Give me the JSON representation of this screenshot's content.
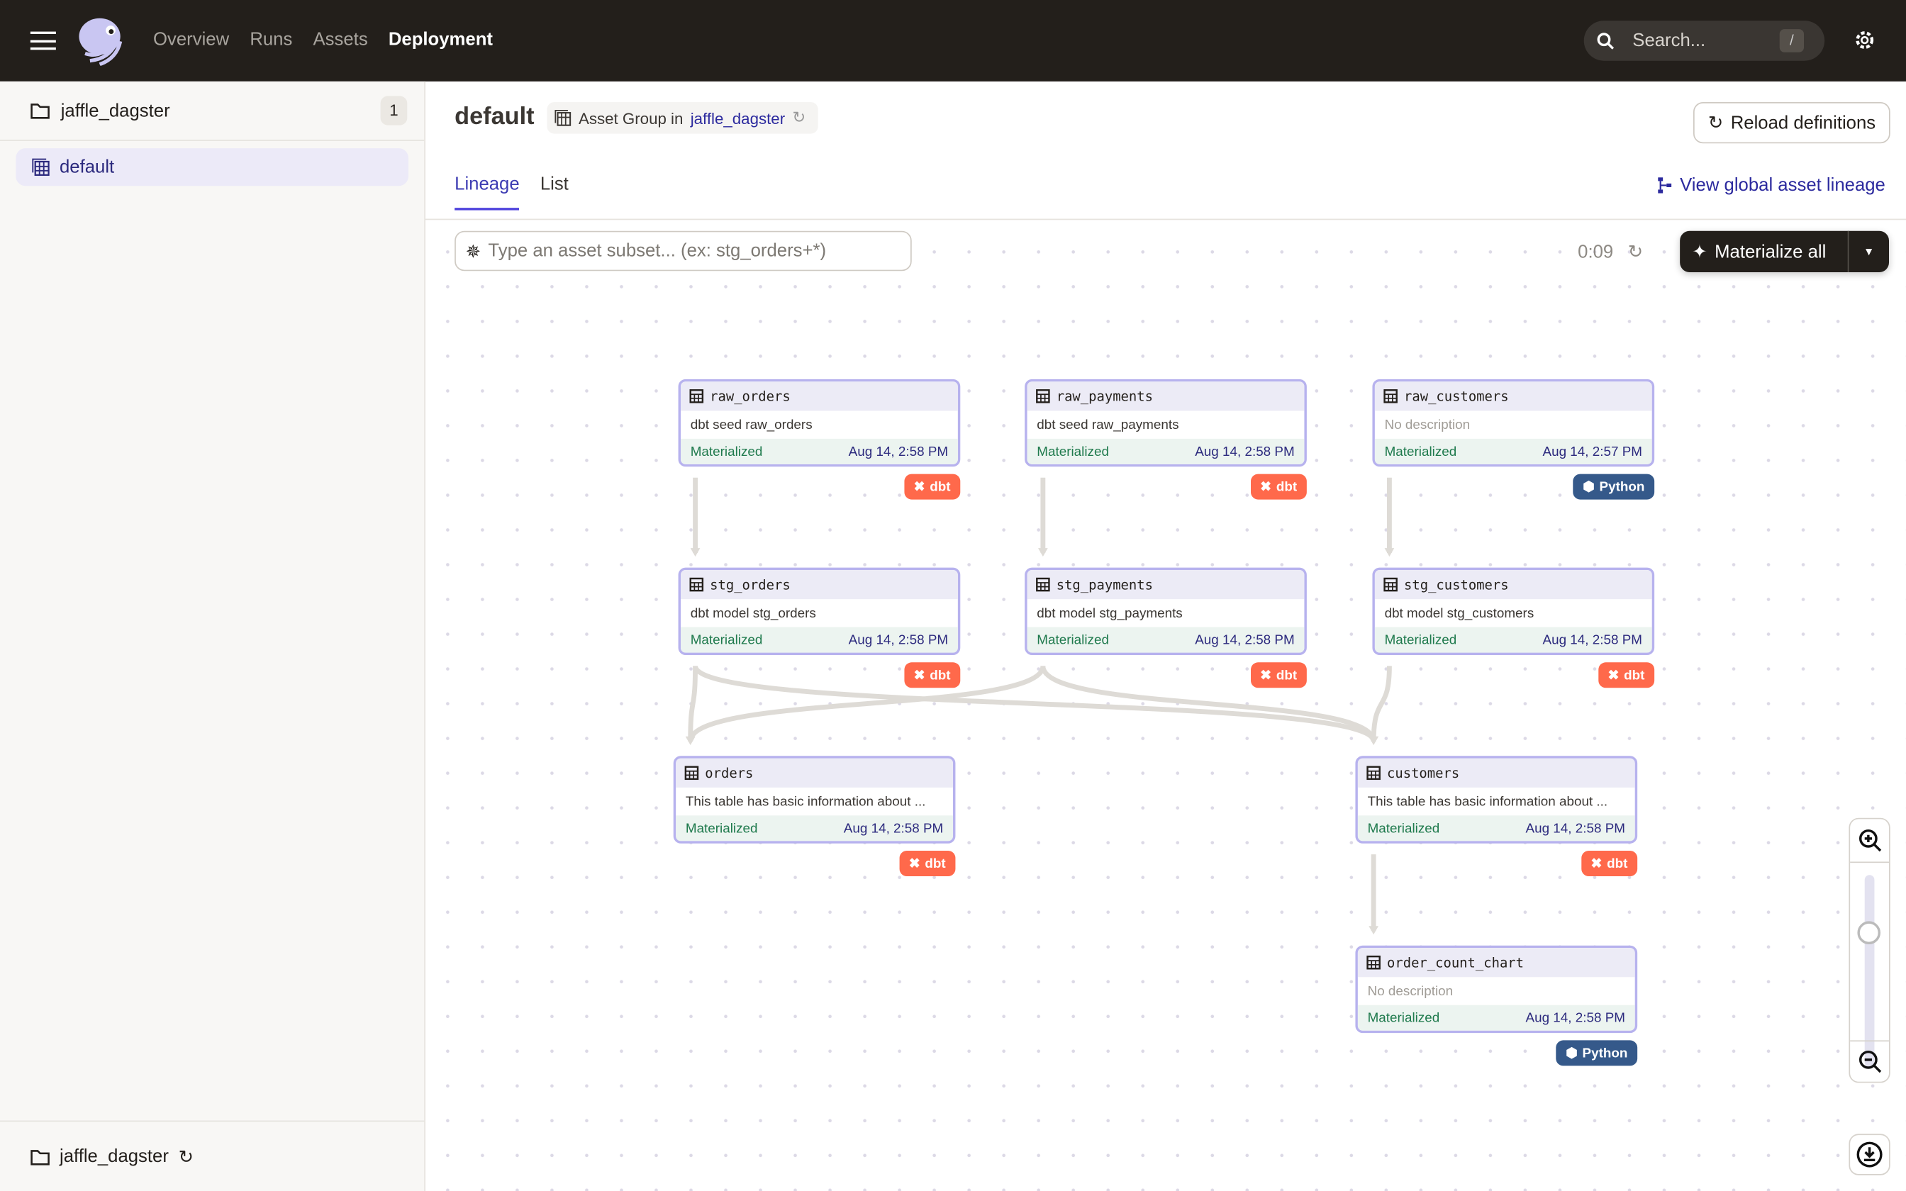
{
  "topbar": {
    "nav": [
      "Overview",
      "Runs",
      "Assets",
      "Deployment"
    ],
    "active": "Deployment",
    "search_placeholder": "Search...",
    "search_shortcut": "/"
  },
  "sidebar": {
    "header": "jaffle_dagster",
    "count": "1",
    "items": [
      {
        "label": "default",
        "selected": true
      }
    ],
    "footer": "jaffle_dagster"
  },
  "page": {
    "title": "default",
    "group_prefix": "Asset Group in",
    "group_location": "jaffle_dagster",
    "reload_label": "Reload definitions",
    "tabs": [
      "Lineage",
      "List"
    ],
    "active_tab": "Lineage",
    "global_lineage": "View global asset lineage"
  },
  "toolbar": {
    "filter_placeholder": "Type an asset subset... (ex: stg_orders+*)",
    "timer": "0:09",
    "materialize_label": "Materialize all"
  },
  "zoom": {
    "level": 0.7
  },
  "colors": {
    "accent": "#4f43dd",
    "dbt": "#ff694b",
    "python": "#35598a",
    "materialized": "#1f7a4d"
  },
  "assets": [
    {
      "name": "raw_orders",
      "description": "dbt seed raw_orders",
      "status": "Materialized",
      "time": "Aug 14, 2:58 PM",
      "kind": "dbt"
    },
    {
      "name": "raw_payments",
      "description": "dbt seed raw_payments",
      "status": "Materialized",
      "time": "Aug 14, 2:58 PM",
      "kind": "dbt"
    },
    {
      "name": "raw_customers",
      "description": "No description",
      "status": "Materialized",
      "time": "Aug 14, 2:57 PM",
      "kind": "Python"
    },
    {
      "name": "stg_orders",
      "description": "dbt model stg_orders",
      "status": "Materialized",
      "time": "Aug 14, 2:58 PM",
      "kind": "dbt"
    },
    {
      "name": "stg_payments",
      "description": "dbt model stg_payments",
      "status": "Materialized",
      "time": "Aug 14, 2:58 PM",
      "kind": "dbt"
    },
    {
      "name": "stg_customers",
      "description": "dbt model stg_customers",
      "status": "Materialized",
      "time": "Aug 14, 2:58 PM",
      "kind": "dbt"
    },
    {
      "name": "orders",
      "description": "This table has basic information about ...",
      "status": "Materialized",
      "time": "Aug 14, 2:58 PM",
      "kind": "dbt"
    },
    {
      "name": "customers",
      "description": "This table has basic information about ...",
      "status": "Materialized",
      "time": "Aug 14, 2:58 PM",
      "kind": "dbt"
    },
    {
      "name": "order_count_chart",
      "description": "No description",
      "status": "Materialized",
      "time": "Aug 14, 2:58 PM",
      "kind": "Python"
    }
  ],
  "edges": [
    [
      "raw_orders",
      "stg_orders"
    ],
    [
      "raw_payments",
      "stg_payments"
    ],
    [
      "raw_customers",
      "stg_customers"
    ],
    [
      "stg_orders",
      "orders"
    ],
    [
      "stg_payments",
      "orders"
    ],
    [
      "stg_orders",
      "customers"
    ],
    [
      "stg_payments",
      "customers"
    ],
    [
      "stg_customers",
      "customers"
    ],
    [
      "customers",
      "order_count_chart"
    ]
  ]
}
